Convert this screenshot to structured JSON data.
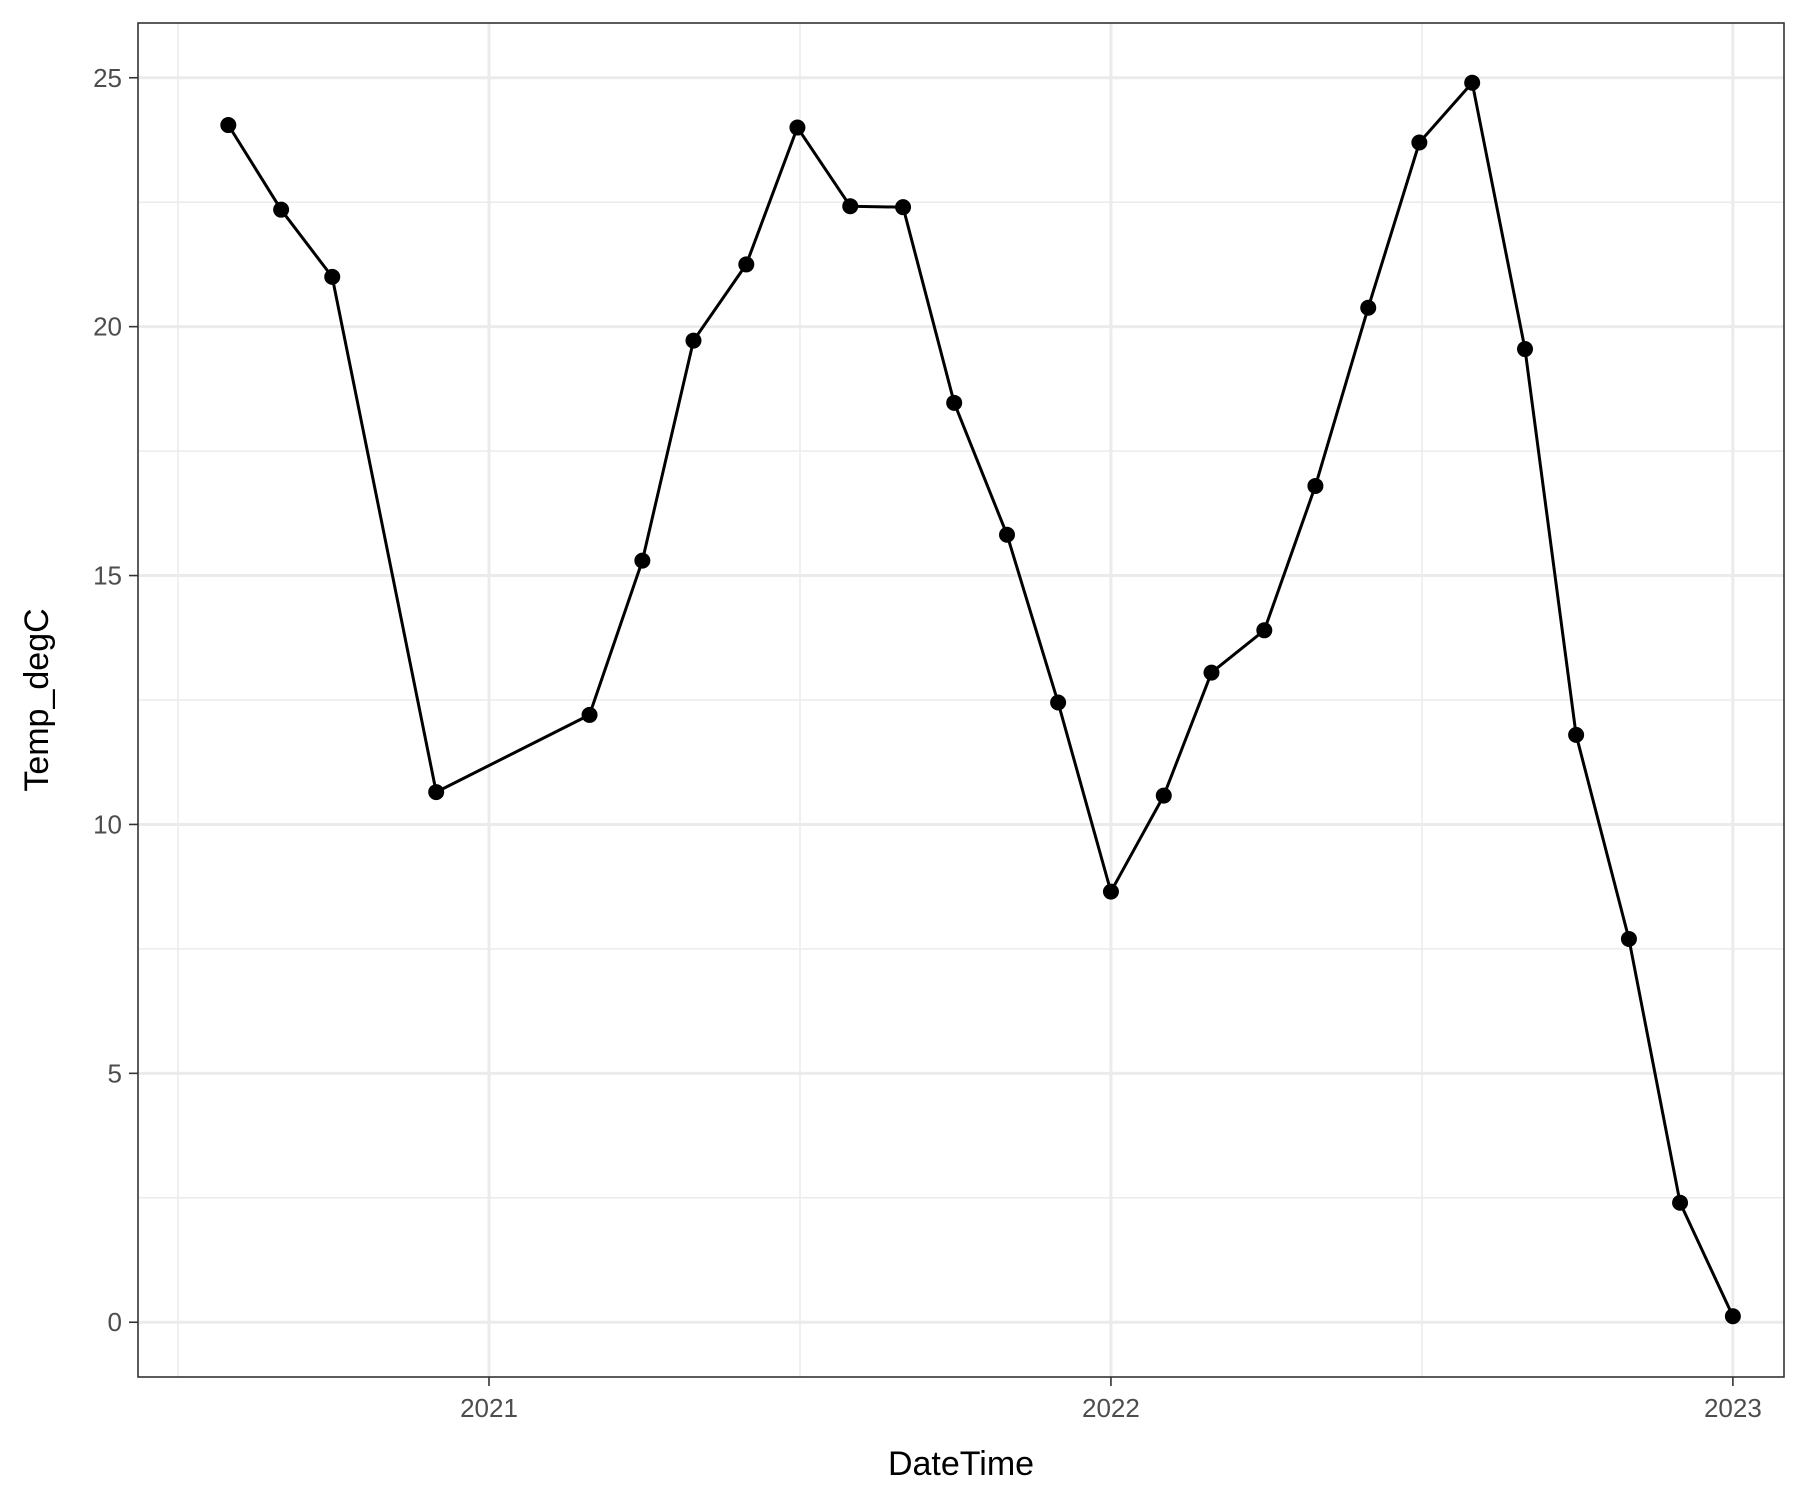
{
  "chart_data": {
    "type": "line",
    "title": "",
    "xlabel": "DateTime",
    "ylabel": "Temp_degC",
    "xlim": [
      "2020-06-09",
      "2023-01-31"
    ],
    "ylim": [
      -1.1,
      26.1
    ],
    "x_ticks": [
      "2021-01-01",
      "2022-01-01",
      "2023-01-01"
    ],
    "x_tick_labels": [
      "2021",
      "2022",
      "2023"
    ],
    "y_ticks": [
      0,
      5,
      10,
      15,
      20,
      25
    ],
    "y_tick_labels": [
      "0",
      "5",
      "10",
      "15",
      "20",
      "25"
    ],
    "grid": true,
    "legend": "none",
    "colors": {
      "line": "#000000",
      "points": "#000000",
      "grid": "#ebebeb",
      "panel_border": "#333333"
    },
    "series": [
      {
        "x": [
          "2020-08-01",
          "2020-09-01",
          "2020-10-01",
          "2020-12-01",
          "2021-03-01",
          "2021-04-01",
          "2021-05-01",
          "2021-06-01",
          "2021-07-01",
          "2021-08-01",
          "2021-09-01",
          "2021-10-01",
          "2021-11-01",
          "2021-12-01",
          "2022-01-01",
          "2022-02-01",
          "2022-03-01",
          "2022-04-01",
          "2022-05-01",
          "2022-06-01",
          "2022-07-01",
          "2022-08-01",
          "2022-09-01",
          "2022-10-01",
          "2022-11-01",
          "2022-12-01",
          "2023-01-01"
        ],
        "y": [
          24.05,
          22.35,
          21.0,
          10.65,
          12.2,
          15.3,
          19.72,
          21.25,
          24.0,
          22.42,
          22.4,
          18.47,
          15.82,
          12.45,
          8.65,
          10.58,
          13.05,
          13.9,
          16.8,
          20.38,
          23.7,
          24.9,
          19.55,
          11.8,
          7.7,
          2.4,
          0.12
        ]
      }
    ]
  }
}
